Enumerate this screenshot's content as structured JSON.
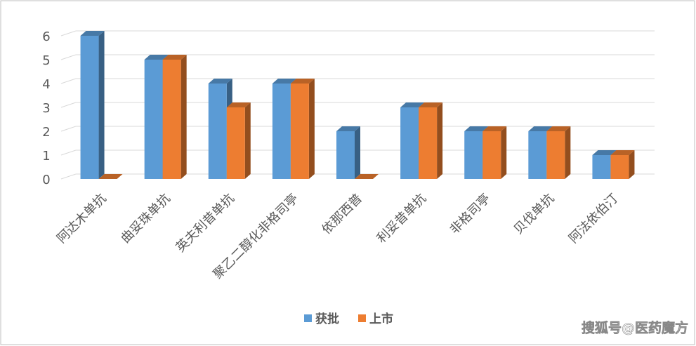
{
  "chart_data": {
    "type": "bar3d",
    "categories": [
      "阿达木单抗",
      "曲妥珠单抗",
      "英夫利昔单抗",
      "聚乙二醇化非格司亭",
      "依那西普",
      "利妥昔单抗",
      "非格司亭",
      "贝伐单抗",
      "阿法依伯汀"
    ],
    "series": [
      {
        "name": "获批",
        "color": "#5b9bd5",
        "values": [
          6,
          5,
          4,
          4,
          2,
          3,
          2,
          2,
          1
        ]
      },
      {
        "name": "上市",
        "color": "#ed7d31",
        "values": [
          0,
          5,
          3,
          4,
          0,
          3,
          2,
          2,
          1
        ]
      }
    ],
    "ylim": [
      0,
      6
    ],
    "yticks": [
      0,
      1,
      2,
      3,
      4,
      5,
      6
    ],
    "grid": true,
    "legend": "bottom",
    "watermark": "搜狐号@医药魔方"
  }
}
